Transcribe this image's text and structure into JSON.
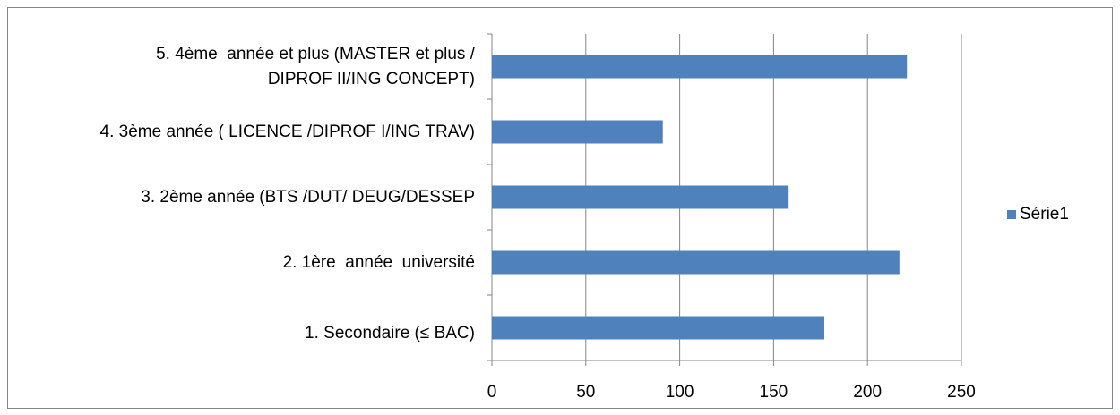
{
  "chart_data": {
    "type": "bar",
    "orientation": "horizontal",
    "categories": [
      "1. Secondaire (≤ BAC)",
      "2. 1ère  année  université",
      "3. 2ème année (BTS /DUT/ DEUG/DESSEP",
      "4. 3ème année ( LICENCE /DIPROF I/ING TRAV)",
      "5. 4ème  année et plus (MASTER et plus /\nDIPROF II/ING CONCEPT)"
    ],
    "series": [
      {
        "name": "Série1",
        "color": "#4f81bd",
        "values": [
          177,
          217,
          158,
          91,
          221
        ]
      }
    ],
    "xlim": [
      0,
      250
    ],
    "xticks": [
      0,
      50,
      100,
      150,
      200,
      250
    ],
    "grid": true,
    "legend": "right"
  }
}
